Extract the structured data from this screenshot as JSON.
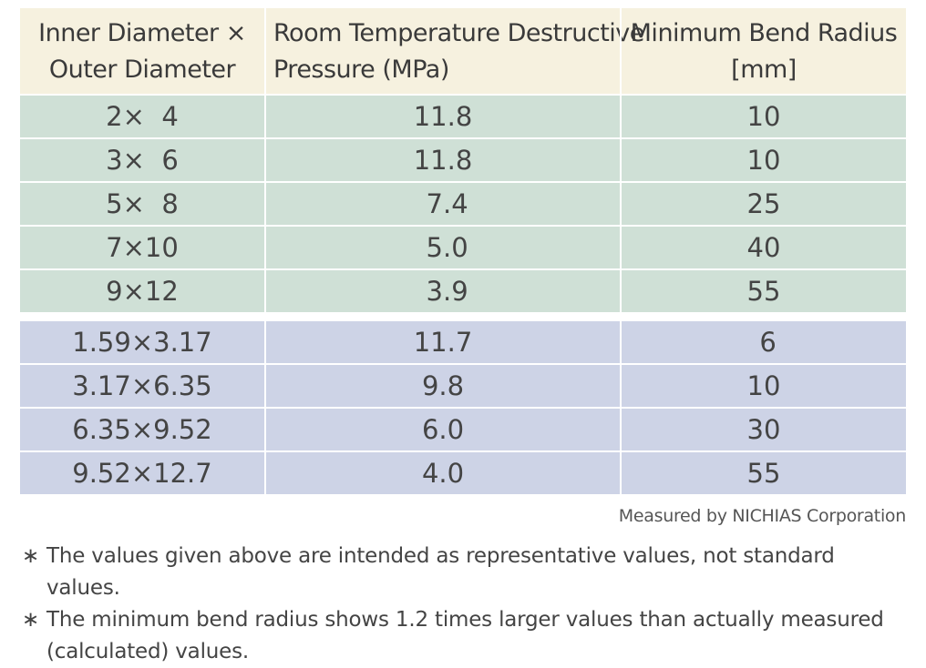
{
  "table": {
    "headers": [
      [
        "Inner Diameter ×",
        "Outer Diameter"
      ],
      [
        "Room Temperature Destructive",
        "Pressure (MPa)"
      ],
      [
        "Minimum Bend Radius",
        "[mm]"
      ]
    ],
    "group1": [
      [
        "2×  4",
        "11.8",
        "10"
      ],
      [
        "3×  6",
        "11.8",
        "10"
      ],
      [
        "5×  8",
        " 7.4",
        "25"
      ],
      [
        "7×10",
        " 5.0",
        "40"
      ],
      [
        "9×12",
        " 3.9",
        "55"
      ]
    ],
    "group2": [
      [
        "1.59×3.17",
        "11.7",
        " 6"
      ],
      [
        "3.17×6.35",
        "9.8",
        "10"
      ],
      [
        "6.35×9.52",
        "6.0",
        "30"
      ],
      [
        "9.52×12.7",
        "4.0",
        "55"
      ]
    ],
    "colors": {
      "header": "#f6f1df",
      "group1": "#cfe0d6",
      "group2": "#cdd3e6"
    }
  },
  "measured_by": "Measured by NICHIAS Corporation",
  "notes": {
    "asterisk": "∗",
    "items": [
      "The values given above are intended as representative values, not standard values.",
      "The minimum bend radius shows 1.2 times larger values than actually measured (calculated) values."
    ]
  }
}
